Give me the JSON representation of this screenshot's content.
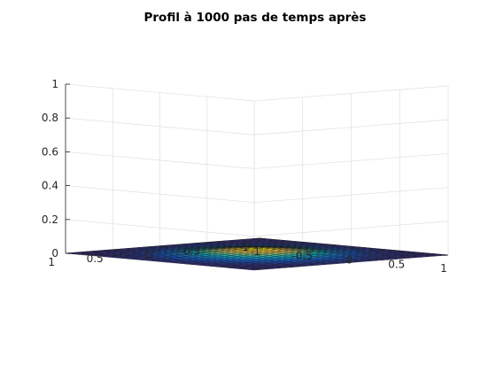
{
  "chart_data": {
    "type": "surface",
    "title": "Profil à 1000 pas de temps après",
    "xlabel": "",
    "ylabel": "",
    "zlabel": "",
    "xlim": [
      -1,
      1
    ],
    "ylim": [
      -1,
      1
    ],
    "zlim": [
      0,
      1
    ],
    "x_ticks": [
      -1,
      -0.5,
      0,
      0.5,
      1
    ],
    "y_ticks": [
      -1,
      -0.5,
      0,
      0.5,
      1
    ],
    "z_ticks": [
      0,
      0.2,
      0.4,
      0.6,
      0.8,
      1
    ],
    "x_tick_labels": [
      "-1",
      "-0.5",
      "0",
      "0.5",
      "1"
    ],
    "y_tick_labels": [
      "-1",
      "-0.5",
      "0",
      "0.5",
      "1"
    ],
    "z_tick_labels": [
      "0",
      "0.2",
      "0.4",
      "0.6",
      "0.8",
      "1"
    ],
    "grid": true,
    "colormap": "parula",
    "grid_points": 31,
    "surface_description": "Gaussian-like bump centered at (0,0)",
    "peak_value": 0.035,
    "spread_sigma": 0.35,
    "colormap_stops": [
      "#352a87",
      "#0f5cdd",
      "#1481d6",
      "#06a4ca",
      "#2eb7a4",
      "#87bf77",
      "#d1bb59",
      "#fec832",
      "#f9fb0e"
    ]
  }
}
